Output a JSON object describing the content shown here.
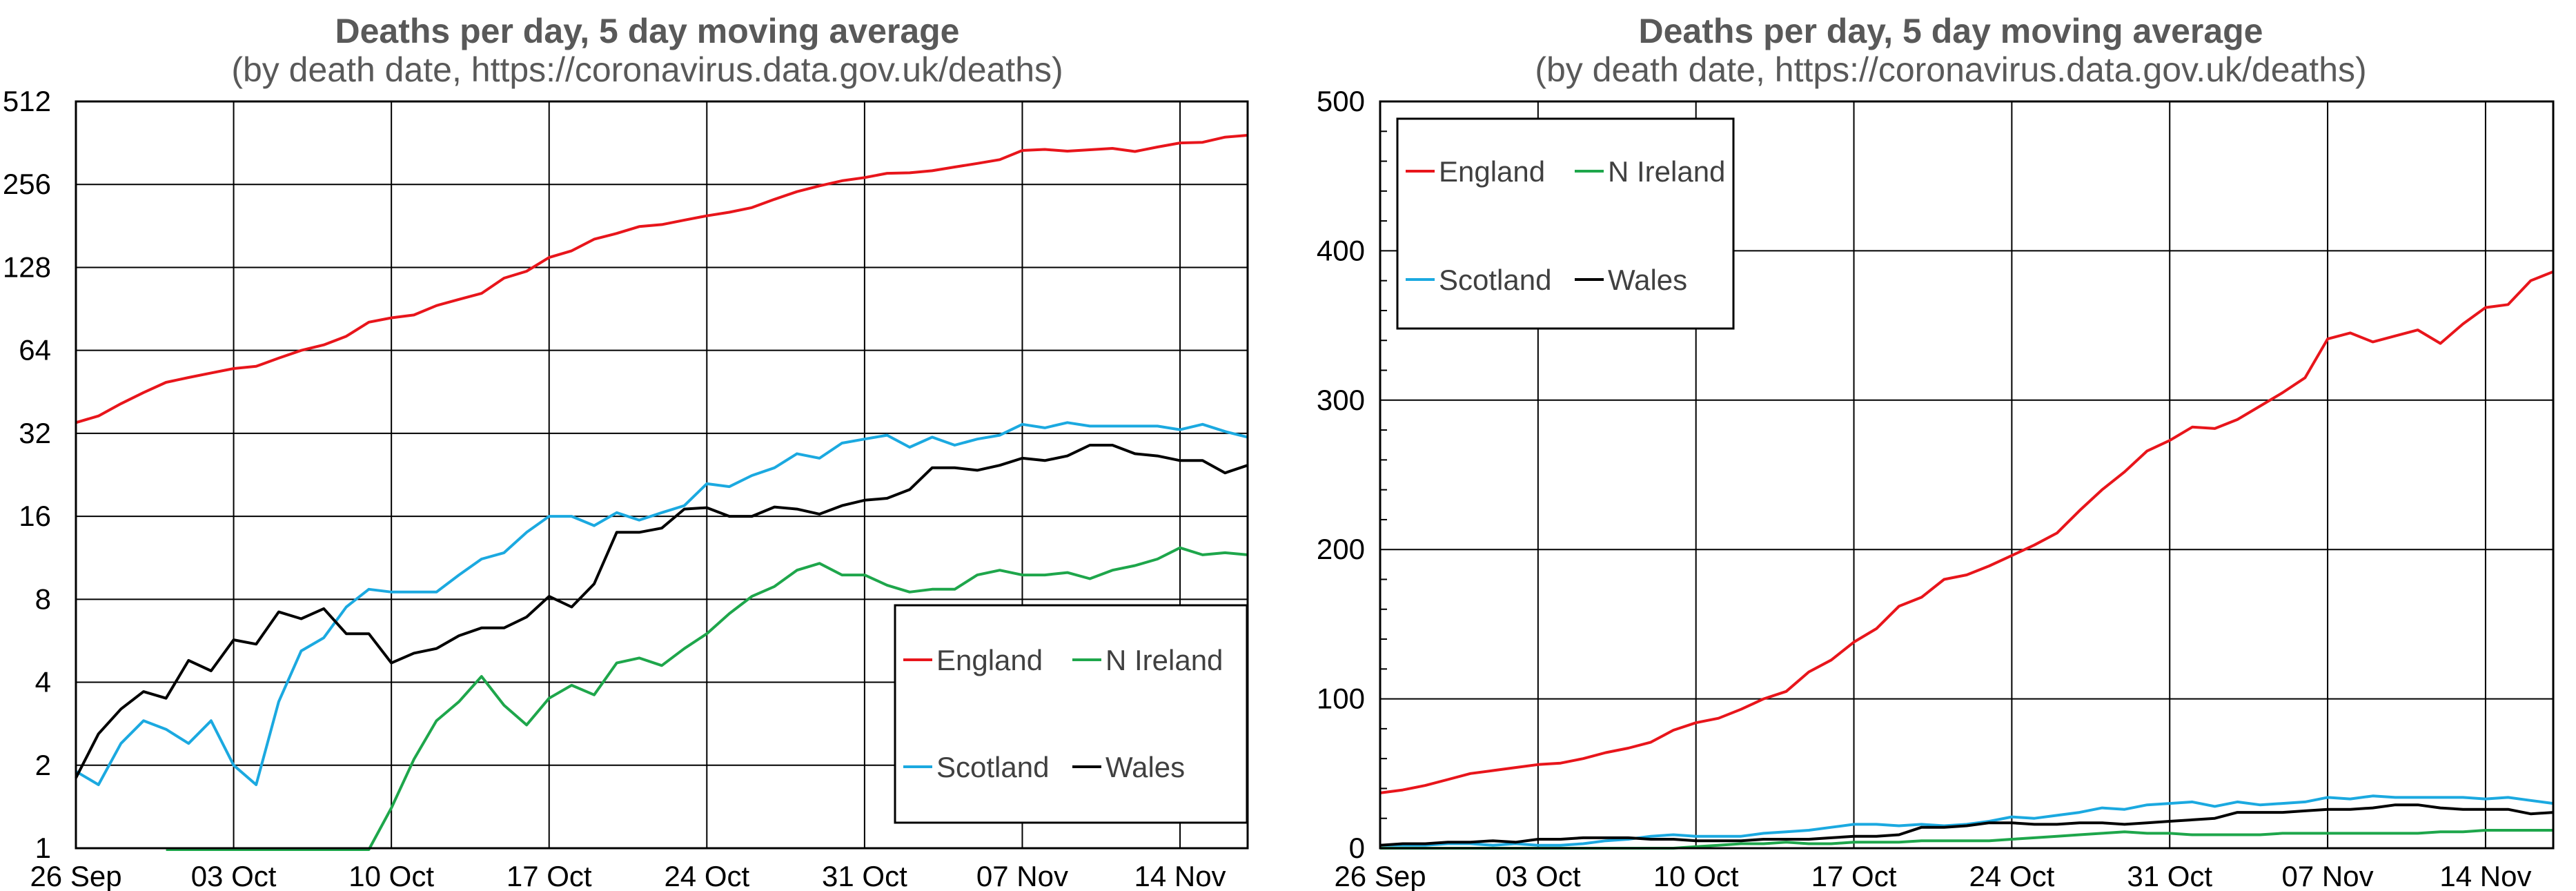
{
  "chart_data": [
    {
      "type": "line",
      "title": "Deaths per day, 5 day moving average",
      "subtitle": "(by death date, https://coronavirus.data.gov.uk/deaths)",
      "y_scale": "log2",
      "ylim": [
        1,
        512
      ],
      "yticks": [
        "1",
        "2",
        "4",
        "8",
        "16",
        "32",
        "64",
        "128",
        "256",
        "512"
      ],
      "x_start": "26 Sep",
      "x_end": "18 Nov",
      "xticks": [
        "26 Sep",
        "03 Oct",
        "10 Oct",
        "17 Oct",
        "24 Oct",
        "31 Oct",
        "07 Nov",
        "14 Nov"
      ],
      "grid": true,
      "legend_position": "bottom-right",
      "series": [
        {
          "name": "England",
          "color": "#e8151b",
          "values": [
            35,
            37,
            41,
            45,
            49,
            51,
            53,
            55,
            56,
            60,
            64,
            67,
            72,
            81,
            84,
            86,
            93,
            98,
            103,
            117,
            124,
            139,
            147,
            162,
            170,
            180,
            183,
            190,
            197,
            203,
            211,
            226,
            241,
            253,
            264,
            271,
            281,
            282,
            287,
            296,
            305,
            315,
            340,
            343,
            338,
            342,
            346,
            337,
            350,
            362,
            364,
            380,
            386
          ]
        },
        {
          "name": "N Ireland",
          "color": "#1ea64b",
          "values": [
            null,
            null,
            null,
            null,
            0,
            0,
            0,
            0,
            0,
            0,
            0,
            0,
            0,
            0,
            1.4,
            2.1,
            2.9,
            3.4,
            4.2,
            3.3,
            2.8,
            3.5,
            3.9,
            3.6,
            4.7,
            4.9,
            4.6,
            5.3,
            6.0,
            7.1,
            8.2,
            8.9,
            10.2,
            10.8,
            9.8,
            9.8,
            9.0,
            8.5,
            8.7,
            8.7,
            9.8,
            10.2,
            9.8,
            9.8,
            10.0,
            9.5,
            10.2,
            10.6,
            11.2,
            12.3,
            11.6,
            11.8,
            11.6
          ]
        },
        {
          "name": "Scotland",
          "color": "#1ba9e0",
          "values": [
            1.9,
            1.7,
            2.4,
            2.9,
            2.7,
            2.4,
            2.9,
            2.0,
            1.7,
            3.4,
            5.2,
            5.8,
            7.5,
            8.7,
            8.5,
            8.5,
            8.5,
            9.8,
            11.2,
            11.8,
            14.0,
            16.0,
            16.0,
            14.8,
            16.5,
            15.5,
            16.5,
            17.5,
            21.0,
            20.5,
            22.5,
            24.0,
            27.0,
            26.0,
            29.5,
            30.5,
            31.5,
            28.5,
            31.0,
            29.0,
            30.5,
            31.5,
            34.5,
            33.5,
            35.0,
            34.0,
            34.0,
            34.0,
            34.0,
            33.0,
            34.5,
            32.5,
            31.0
          ]
        },
        {
          "name": "Wales",
          "color": "#000000",
          "values": [
            1.8,
            2.6,
            3.2,
            3.7,
            3.5,
            4.8,
            4.4,
            5.7,
            5.5,
            7.2,
            6.8,
            7.4,
            6.0,
            6.0,
            4.7,
            5.1,
            5.3,
            5.9,
            6.3,
            6.3,
            6.9,
            8.2,
            7.5,
            9.1,
            14.0,
            14.0,
            14.5,
            17.0,
            17.2,
            16.0,
            16.0,
            17.3,
            17.0,
            16.3,
            17.5,
            18.3,
            18.6,
            20.0,
            24.0,
            24.0,
            23.5,
            24.5,
            26.0,
            25.5,
            26.5,
            29.0,
            29.0,
            27.0,
            26.5,
            25.5,
            25.5,
            23.0,
            24.5
          ]
        }
      ]
    },
    {
      "type": "line",
      "title": "Deaths per day, 5 day moving average",
      "subtitle": "(by death date, https://coronavirus.data.gov.uk/deaths)",
      "y_scale": "linear",
      "ylim": [
        0,
        500
      ],
      "yticks": [
        "0",
        "100",
        "200",
        "300",
        "400",
        "500"
      ],
      "x_start": "26 Sep",
      "x_end": "18 Nov",
      "xticks": [
        "26 Sep",
        "03 Oct",
        "10 Oct",
        "17 Oct",
        "24 Oct",
        "31 Oct",
        "07 Nov",
        "14 Nov"
      ],
      "grid": true,
      "legend_position": "top-left",
      "series": [
        {
          "name": "England",
          "color": "#e8151b",
          "values": [
            37,
            39,
            42,
            46,
            50,
            52,
            54,
            56,
            57,
            60,
            64,
            67,
            71,
            79,
            84,
            87,
            93,
            100,
            105,
            118,
            126,
            138,
            147,
            162,
            168,
            180,
            183,
            189,
            196,
            203,
            211,
            226,
            240,
            252,
            266,
            273,
            282,
            281,
            287,
            296,
            305,
            315,
            341,
            345,
            339,
            343,
            347,
            338,
            351,
            362,
            364,
            380,
            386
          ]
        },
        {
          "name": "N Ireland",
          "color": "#1ea64b",
          "values": [
            0,
            0,
            0,
            0,
            0,
            0,
            0,
            0,
            0,
            0,
            0,
            0,
            0,
            0,
            1,
            2,
            3,
            3,
            4,
            3,
            3,
            4,
            4,
            4,
            5,
            5,
            5,
            5,
            6,
            7,
            8,
            9,
            10,
            11,
            10,
            10,
            9,
            9,
            9,
            9,
            10,
            10,
            10,
            10,
            10,
            10,
            10,
            11,
            11,
            12,
            12,
            12,
            12
          ]
        },
        {
          "name": "Scotland",
          "color": "#1ba9e0",
          "values": [
            2,
            2,
            2,
            3,
            3,
            2,
            3,
            2,
            2,
            3,
            5,
            6,
            8,
            9,
            8,
            8,
            8,
            10,
            11,
            12,
            14,
            16,
            16,
            15,
            16,
            15,
            16,
            18,
            21,
            20,
            22,
            24,
            27,
            26,
            29,
            30,
            31,
            28,
            31,
            29,
            30,
            31,
            34,
            33,
            35,
            34,
            34,
            34,
            34,
            33,
            34,
            32,
            30
          ]
        },
        {
          "name": "Wales",
          "color": "#000000",
          "values": [
            2,
            3,
            3,
            4,
            4,
            5,
            4,
            6,
            6,
            7,
            7,
            7,
            6,
            6,
            5,
            5,
            5,
            6,
            6,
            6,
            7,
            8,
            8,
            9,
            14,
            14,
            15,
            17,
            17,
            16,
            16,
            17,
            17,
            16,
            17,
            18,
            19,
            20,
            24,
            24,
            24,
            25,
            26,
            26,
            27,
            29,
            29,
            27,
            26,
            26,
            26,
            23,
            24
          ]
        }
      ]
    }
  ]
}
